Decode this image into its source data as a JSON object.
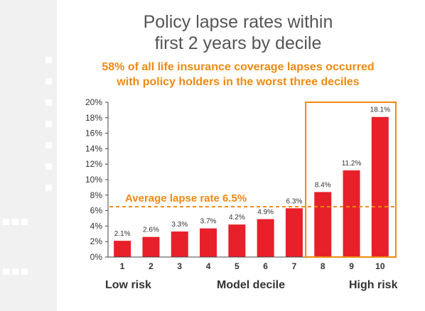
{
  "title_line1": "Policy lapse rates within",
  "title_line2": "first 2 years by decile",
  "subtitle_line1": "58% of all life insurance coverage lapses occurred",
  "subtitle_line2": "with policy holders in the worst three deciles",
  "footer": {
    "low": "Low risk",
    "middle": "Model decile",
    "high": "High risk"
  },
  "colors": {
    "bar": "#e8202a",
    "accent": "#ef8a12",
    "text": "#333333"
  },
  "chart_data": {
    "type": "bar",
    "categories": [
      "1",
      "2",
      "3",
      "4",
      "5",
      "6",
      "7",
      "8",
      "9",
      "10"
    ],
    "values": [
      2.1,
      2.6,
      3.3,
      3.7,
      4.2,
      4.9,
      6.3,
      8.4,
      11.2,
      18.1
    ],
    "value_labels": [
      "2.1%",
      "2.6%",
      "3.3%",
      "3.7%",
      "4.2%",
      "4.9%",
      "6.3%",
      "8.4%",
      "11.2%",
      "18.1%"
    ],
    "ylim": [
      0,
      20
    ],
    "yticks": [
      "0%",
      "2%",
      "4%",
      "6%",
      "8%",
      "10%",
      "12%",
      "14%",
      "16%",
      "18%",
      "20%"
    ],
    "grid": false,
    "reference_line": {
      "value": 6.5,
      "label": "Average lapse rate 6.5%"
    },
    "highlight": {
      "from_category": "8",
      "to_category": "10"
    }
  }
}
